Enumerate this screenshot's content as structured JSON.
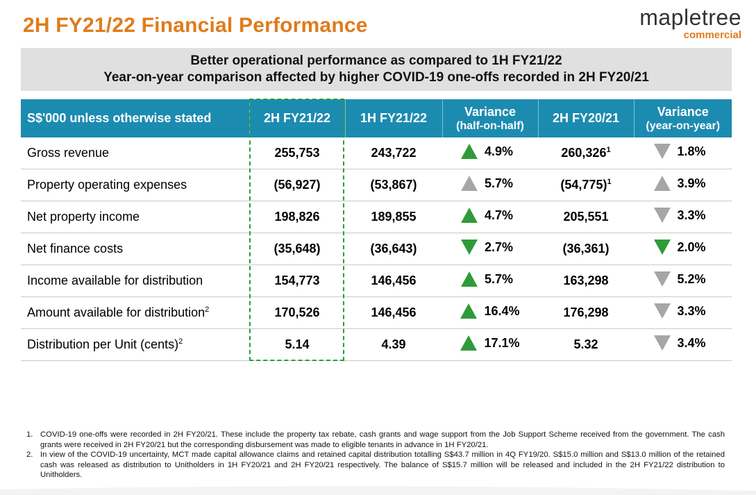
{
  "title": "2H FY21/22 Financial Performance",
  "logo": {
    "main": "mapletree",
    "sub": "commercial"
  },
  "banner": {
    "line1": "Better operational performance as compared to 1H FY21/22",
    "line2": "Year-on-year comparison affected by higher COVID-19 one-offs recorded in 2H FY20/21"
  },
  "colors": {
    "accent": "#e07b1b",
    "header": "#1c8bb0",
    "up_green": "#2e9b3a",
    "neutral_grey": "#a6a6a6"
  },
  "table": {
    "headers": {
      "label": "S$'000 unless otherwise stated",
      "h2fy2122": "2H FY21/22",
      "h1fy2122": "1H FY21/22",
      "var_hoh": "Variance",
      "var_hoh_sub": "(half-on-half)",
      "h2fy2021": "2H FY20/21",
      "var_yoy": "Variance",
      "var_yoy_sub": "(year-on-year)"
    },
    "rows": [
      {
        "label": "Gross revenue",
        "label_sup": "",
        "c1": "255,753",
        "c2": "243,722",
        "hoh_dir": "up",
        "hoh_color": "green",
        "hoh": "4.9%",
        "c3": "260,326",
        "c3_sup": "1",
        "yoy_dir": "down",
        "yoy_color": "grey",
        "yoy": "1.8%"
      },
      {
        "label": "Property operating expenses",
        "label_sup": "",
        "c1": "(56,927)",
        "c2": "(53,867)",
        "hoh_dir": "up",
        "hoh_color": "grey",
        "hoh": "5.7%",
        "c3": "(54,775)",
        "c3_sup": "1",
        "yoy_dir": "up",
        "yoy_color": "grey",
        "yoy": "3.9%"
      },
      {
        "label": "Net property income",
        "label_sup": "",
        "c1": "198,826",
        "c2": "189,855",
        "hoh_dir": "up",
        "hoh_color": "green",
        "hoh": "4.7%",
        "c3": "205,551",
        "c3_sup": "",
        "yoy_dir": "down",
        "yoy_color": "grey",
        "yoy": "3.3%"
      },
      {
        "label": "Net finance costs",
        "label_sup": "",
        "c1": "(35,648)",
        "c2": "(36,643)",
        "hoh_dir": "down",
        "hoh_color": "green",
        "hoh": "2.7%",
        "c3": "(36,361)",
        "c3_sup": "",
        "yoy_dir": "down",
        "yoy_color": "green",
        "yoy": "2.0%"
      },
      {
        "label": "Income available for distribution",
        "label_sup": "",
        "c1": "154,773",
        "c2": "146,456",
        "hoh_dir": "up",
        "hoh_color": "green",
        "hoh": "5.7%",
        "c3": "163,298",
        "c3_sup": "",
        "yoy_dir": "down",
        "yoy_color": "grey",
        "yoy": "5.2%"
      },
      {
        "label": "Amount available for distribution",
        "label_sup": "2",
        "c1": "170,526",
        "c2": "146,456",
        "hoh_dir": "up",
        "hoh_color": "green",
        "hoh": "16.4%",
        "c3": "176,298",
        "c3_sup": "",
        "yoy_dir": "down",
        "yoy_color": "grey",
        "yoy": "3.3%"
      },
      {
        "label": "Distribution per Unit (cents)",
        "label_sup": "2",
        "c1": "5.14",
        "c2": "4.39",
        "hoh_dir": "up",
        "hoh_color": "green",
        "hoh": "17.1%",
        "c3": "5.32",
        "c3_sup": "",
        "yoy_dir": "down",
        "yoy_color": "grey",
        "yoy": "3.4%"
      }
    ]
  },
  "footnotes": [
    {
      "num": "1.",
      "text": "COVID-19 one-offs were recorded in 2H FY20/21. These include the property tax rebate, cash grants and wage support from the Job Support Scheme received from the government. The cash grants were received in 2H FY20/21 but the corresponding disbursement was made to eligible tenants in advance in 1H FY20/21."
    },
    {
      "num": "2.",
      "text": "In view of the COVID-19 uncertainty, MCT made capital allowance claims and retained capital distribution totalling S$43.7 million in 4Q FY19/20. S$15.0 million and S$13.0 million of the retained cash was released as distribution to Unitholders in 1H FY20/21 and 2H FY20/21 respectively. The balance of S$15.7 million will be released and included in the 2H FY21/22 distribution to Unitholders."
    }
  ]
}
